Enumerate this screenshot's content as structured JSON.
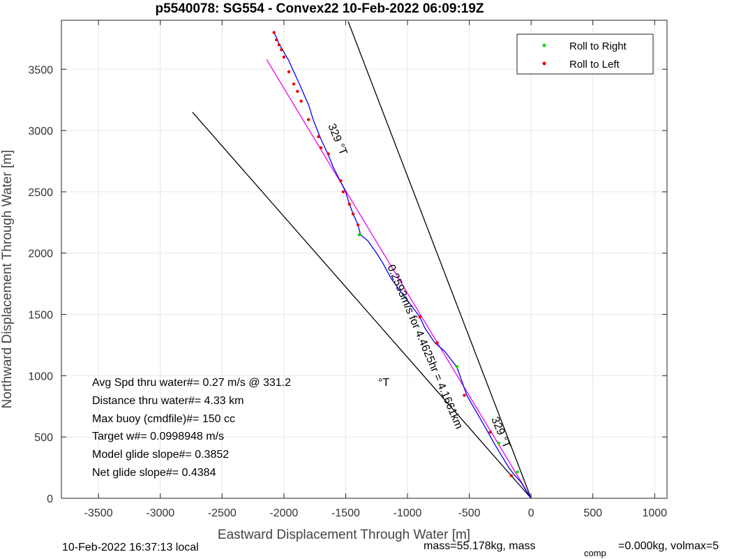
{
  "chart_data": {
    "type": "scatter",
    "title": "p5540078: SG554 - Convex22 10-Feb-2022 06:09:19Z",
    "xlabel": "Eastward Displacement Through Water [m]",
    "ylabel": "Northward Displacement Through Water [m]",
    "xlim": [
      -3800,
      1100
    ],
    "ylim": [
      0,
      3900
    ],
    "xticks": [
      -3500,
      -3000,
      -2500,
      -2000,
      -1500,
      -1000,
      -500,
      0,
      500,
      1000
    ],
    "yticks": [
      0,
      500,
      1000,
      1500,
      2000,
      2500,
      3000,
      3500
    ],
    "grid": true,
    "legend": {
      "placement": "top-right",
      "entries": [
        {
          "label": "Roll to Right",
          "color": "#00dd00"
        },
        {
          "label": "Roll to Left",
          "color": "#ee0000"
        }
      ]
    },
    "track": {
      "color": "#0000ee",
      "points": [
        [
          0,
          0
        ],
        [
          -40,
          60
        ],
        [
          -80,
          130
        ],
        [
          -130,
          185
        ],
        [
          -180,
          250
        ],
        [
          -240,
          350
        ],
        [
          -300,
          450
        ],
        [
          -360,
          560
        ],
        [
          -440,
          700
        ],
        [
          -520,
          840
        ],
        [
          -600,
          1070
        ],
        [
          -700,
          1200
        ],
        [
          -780,
          1270
        ],
        [
          -860,
          1390
        ],
        [
          -900,
          1480
        ],
        [
          -960,
          1560
        ],
        [
          -1050,
          1680
        ],
        [
          -1130,
          1790
        ],
        [
          -1200,
          1920
        ],
        [
          -1250,
          2000
        ],
        [
          -1320,
          2100
        ],
        [
          -1380,
          2150
        ],
        [
          -1400,
          2230
        ],
        [
          -1440,
          2320
        ],
        [
          -1470,
          2400
        ],
        [
          -1500,
          2500
        ],
        [
          -1540,
          2580
        ],
        [
          -1600,
          2700
        ],
        [
          -1640,
          2800
        ],
        [
          -1700,
          2930
        ],
        [
          -1760,
          3080
        ],
        [
          -1800,
          3210
        ],
        [
          -1840,
          3300
        ],
        [
          -1870,
          3370
        ],
        [
          -1920,
          3480
        ],
        [
          -1960,
          3570
        ],
        [
          -2000,
          3640
        ],
        [
          -2040,
          3710
        ],
        [
          -2060,
          3760
        ],
        [
          -2080,
          3800
        ]
      ]
    },
    "roll_right_points": [
      [
        -1390,
        2150
      ],
      [
        -600,
        1075
      ],
      [
        -260,
        450
      ],
      [
        -110,
        215
      ]
    ],
    "roll_left_points": [
      [
        -2080,
        3800
      ],
      [
        -2060,
        3740
      ],
      [
        -2040,
        3700
      ],
      [
        -2020,
        3660
      ],
      [
        -2000,
        3600
      ],
      [
        -1960,
        3480
      ],
      [
        -1920,
        3380
      ],
      [
        -1890,
        3320
      ],
      [
        -1860,
        3240
      ],
      [
        -1800,
        3090
      ],
      [
        -1720,
        2950
      ],
      [
        -1700,
        2860
      ],
      [
        -1640,
        2810
      ],
      [
        -1540,
        2590
      ],
      [
        -1520,
        2500
      ],
      [
        -1470,
        2400
      ],
      [
        -1440,
        2320
      ],
      [
        -1400,
        2230
      ],
      [
        -900,
        1480
      ],
      [
        -760,
        1270
      ],
      [
        -540,
        840
      ],
      [
        -330,
        540
      ],
      [
        -160,
        185
      ]
    ],
    "net_line": {
      "color": "#ee00ee",
      "points": [
        [
          0,
          0
        ],
        [
          -2140,
          3580
        ]
      ]
    },
    "cone_lines": [
      {
        "color": "#000000",
        "points": [
          [
            0,
            0
          ],
          [
            -2740,
            3150
          ]
        ]
      },
      {
        "color": "#000000",
        "points": [
          [
            0,
            0
          ],
          [
            -1480,
            3890
          ]
        ]
      }
    ],
    "heading_label_upper": "329 °T",
    "heading_label_lower": "329 °T",
    "net_label": "0.2593m/s for 4.4625hr = 4.1661km",
    "annotations": [
      "Avg Spd thru water#=  0.27 m/s @ 331.2",
      "°T",
      "Distance thru water#=  4.33 km",
      "Max buoy (cmdfile)#= 150 cc",
      "Target w#= 0.0998948 m/s",
      "Model glide slope#= 0.3852",
      "Net glide slope#= 0.4384"
    ],
    "footer_left": "10-Feb-2022 16:37:13 local",
    "footer_right": "mass=55.178kg, mass",
    "footer_right_sub": "comp",
    "footer_right_tail": "=0.000kg, volmax=5"
  }
}
